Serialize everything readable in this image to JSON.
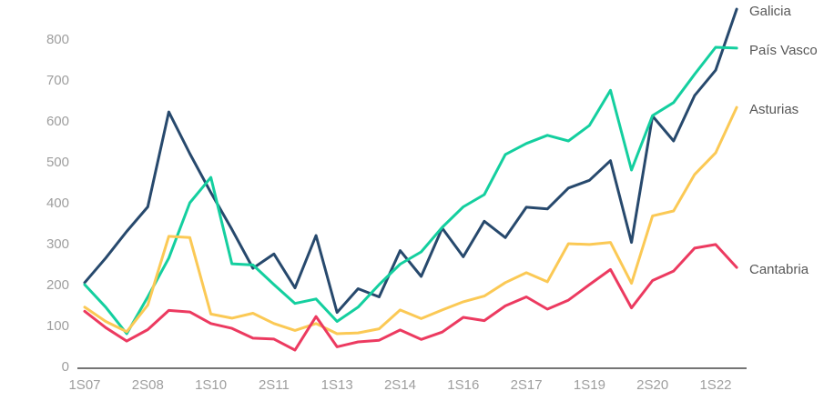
{
  "chart_data": {
    "type": "line",
    "title": "",
    "xlabel": "",
    "ylabel": "",
    "categories": [
      "1S07",
      "2S07",
      "1S08",
      "2S08",
      "1S09",
      "2S09",
      "1S10",
      "2S10",
      "1S11",
      "2S11",
      "1S12",
      "2S12",
      "1S13",
      "2S13",
      "1S14",
      "2S14",
      "1S15",
      "2S15",
      "1S16",
      "2S16",
      "1S17",
      "2S17",
      "1S18",
      "2S18",
      "1S19",
      "2S19",
      "1S20",
      "2S20",
      "1S21",
      "2S21",
      "1S22",
      "2S22"
    ],
    "x_tick_every": 3,
    "x_tick_labels": [
      "1S07",
      "2S08",
      "1S10",
      "2S11",
      "1S13",
      "2S14",
      "1S16",
      "2S17",
      "1S19",
      "2S20",
      "1S22"
    ],
    "yticks": [
      0,
      100,
      200,
      300,
      400,
      500,
      600,
      700,
      800
    ],
    "ylim": [
      0,
      900
    ],
    "grid": false,
    "legend_position": "right-end-labels",
    "series": [
      {
        "name": "Galicia",
        "color": "#27496d",
        "values": [
          205,
          265,
          330,
          390,
          622,
          520,
          425,
          335,
          240,
          275,
          192,
          320,
          132,
          190,
          170,
          283,
          220,
          338,
          268,
          355,
          315,
          389,
          385,
          436,
          455,
          503,
          303,
          612,
          551,
          662,
          724,
          873
        ]
      },
      {
        "name": "País Vasco",
        "color": "#14cf9f",
        "values": [
          200,
          145,
          80,
          170,
          265,
          400,
          462,
          251,
          248,
          200,
          154,
          165,
          110,
          145,
          200,
          250,
          280,
          340,
          390,
          420,
          518,
          545,
          565,
          551,
          589,
          675,
          480,
          613,
          645,
          714,
          780,
          778
        ]
      },
      {
        "name": "Asturias",
        "color": "#fbc955",
        "values": [
          145,
          110,
          85,
          150,
          318,
          315,
          128,
          118,
          130,
          105,
          88,
          105,
          80,
          82,
          92,
          138,
          117,
          138,
          158,
          172,
          205,
          229,
          207,
          300,
          298,
          303,
          203,
          368,
          380,
          469,
          522,
          633
        ]
      },
      {
        "name": "Cantabria",
        "color": "#ec3a60",
        "values": [
          135,
          95,
          62,
          90,
          137,
          133,
          105,
          93,
          69,
          67,
          40,
          122,
          48,
          60,
          64,
          89,
          66,
          84,
          120,
          112,
          148,
          170,
          140,
          162,
          200,
          237,
          143,
          210,
          233,
          289,
          298,
          242
        ]
      }
    ],
    "colors": {
      "axis_line": "#757575",
      "tick_label": "#9e9e9e",
      "series_label": "#575757",
      "background": "#ffffff"
    }
  }
}
